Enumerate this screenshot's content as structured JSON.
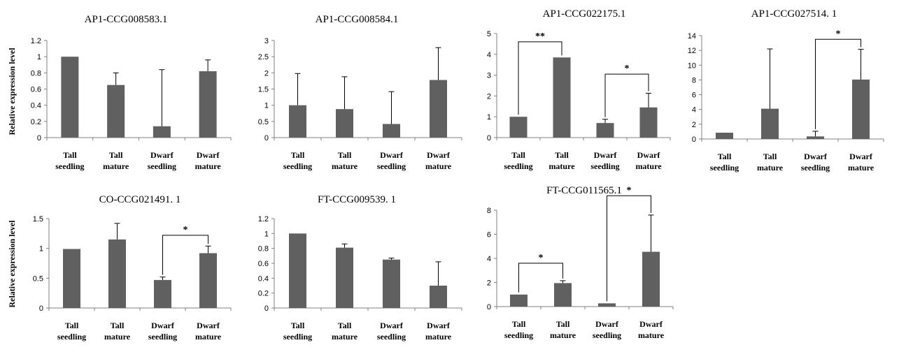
{
  "y_axis_label": "Relative expression level",
  "colors": {
    "bar": "#606060",
    "axis": "#808080",
    "bracket": "#000000"
  },
  "chart_data": [
    {
      "type": "bar",
      "title": "AP1-CCG008583.1",
      "categories": [
        [
          "Tall",
          "seedling"
        ],
        [
          "Tall",
          "mature"
        ],
        [
          "Dwarf",
          "seedling"
        ],
        [
          "Dwarf",
          "mature"
        ]
      ],
      "values": [
        1.0,
        0.65,
        0.14,
        0.82
      ],
      "errors": [
        0.0,
        0.15,
        0.7,
        0.14
      ],
      "ylim": [
        0,
        1.2
      ],
      "yticks": [
        "0",
        "0.2",
        "0.4",
        "0.6",
        "0.8",
        "1",
        "1.2"
      ],
      "significance": []
    },
    {
      "type": "bar",
      "title": "AP1-CCG008584.1",
      "categories": [
        [
          "Tall",
          "seedling"
        ],
        [
          "Tall",
          "mature"
        ],
        [
          "Dwarf",
          "seedling"
        ],
        [
          "Dwarf",
          "mature"
        ]
      ],
      "values": [
        1.0,
        0.88,
        0.42,
        1.78
      ],
      "errors": [
        0.98,
        1.0,
        1.0,
        1.0
      ],
      "ylim": [
        0,
        3
      ],
      "yticks": [
        "0",
        "0.5",
        "1",
        "1.5",
        "2",
        "2.5",
        "3"
      ],
      "significance": []
    },
    {
      "type": "bar",
      "title": "AP1-CCG022175.1",
      "categories": [
        [
          "Tall",
          "seedling"
        ],
        [
          "Tall",
          "mature"
        ],
        [
          "Dwarf",
          "seedling"
        ],
        [
          "Dwarf",
          "mature"
        ]
      ],
      "values": [
        1.0,
        3.85,
        0.7,
        1.45
      ],
      "errors": [
        0.0,
        0.0,
        0.18,
        0.68
      ],
      "ylim": [
        0,
        5
      ],
      "yticks": [
        "0",
        "1",
        "2",
        "3",
        "4",
        "5"
      ],
      "significance": [
        {
          "from": 0,
          "to": 1,
          "level": 4.6,
          "label": "**"
        },
        {
          "from": 2,
          "to": 3,
          "level": 3.05,
          "label": "*"
        }
      ]
    },
    {
      "type": "bar",
      "title": "AP1-CCG027514. 1",
      "categories": [
        [
          "Tall",
          "seedling"
        ],
        [
          "Tall",
          "mature"
        ],
        [
          "Dwarf",
          "seedling"
        ],
        [
          "Dwarf",
          "mature"
        ]
      ],
      "values": [
        0.85,
        4.1,
        0.35,
        8.05
      ],
      "errors": [
        0.0,
        8.1,
        0.7,
        4.1
      ],
      "ylim": [
        0,
        14
      ],
      "yticks": [
        "0",
        "2",
        "4",
        "6",
        "8",
        "10",
        "12",
        "14"
      ],
      "significance": [
        {
          "from": 2,
          "to": 3,
          "level": 13.5,
          "label": "*"
        }
      ]
    },
    {
      "type": "bar",
      "title": "CO-CCG021491. 1",
      "categories": [
        [
          "Tall",
          "seedling"
        ],
        [
          "Tall",
          "mature"
        ],
        [
          "Dwarf",
          "seedling"
        ],
        [
          "Dwarf",
          "mature"
        ]
      ],
      "values": [
        0.99,
        1.15,
        0.47,
        0.92
      ],
      "errors": [
        0.0,
        0.27,
        0.05,
        0.12
      ],
      "ylim": [
        0,
        1.5
      ],
      "yticks": [
        "0",
        "0.5",
        "1",
        "1.5"
      ],
      "significance": [
        {
          "from": 2,
          "to": 3,
          "level": 1.22,
          "label": "*"
        }
      ]
    },
    {
      "type": "bar",
      "title": "FT-CCG009539. 1",
      "categories": [
        [
          "Tall",
          "seedling"
        ],
        [
          "Tall",
          "mature"
        ],
        [
          "Dwarf",
          "seedling"
        ],
        [
          "Dwarf",
          "mature"
        ]
      ],
      "values": [
        1.0,
        0.81,
        0.65,
        0.3
      ],
      "errors": [
        0.0,
        0.05,
        0.02,
        0.32
      ],
      "ylim": [
        0,
        1.2
      ],
      "yticks": [
        "0",
        "0.2",
        "0.4",
        "0.6",
        "0.8",
        "1",
        "1.2"
      ],
      "significance": []
    },
    {
      "type": "bar",
      "title": "FT-CCG011565.1",
      "categories": [
        [
          "Tall",
          "seedling"
        ],
        [
          "Tall",
          "mature"
        ],
        [
          "Dwarf",
          "seedling"
        ],
        [
          "Dwarf",
          "mature"
        ]
      ],
      "values": [
        1.0,
        1.95,
        0.27,
        4.55
      ],
      "errors": [
        0.0,
        0.2,
        0.0,
        3.05
      ],
      "ylim": [
        0,
        8
      ],
      "yticks": [
        "0",
        "2",
        "4",
        "6",
        "8"
      ],
      "significance": [
        {
          "from": 0,
          "to": 1,
          "level": 3.6,
          "label": "*"
        },
        {
          "from": 2,
          "to": 3,
          "level": 9.2,
          "label": "*"
        }
      ]
    }
  ]
}
